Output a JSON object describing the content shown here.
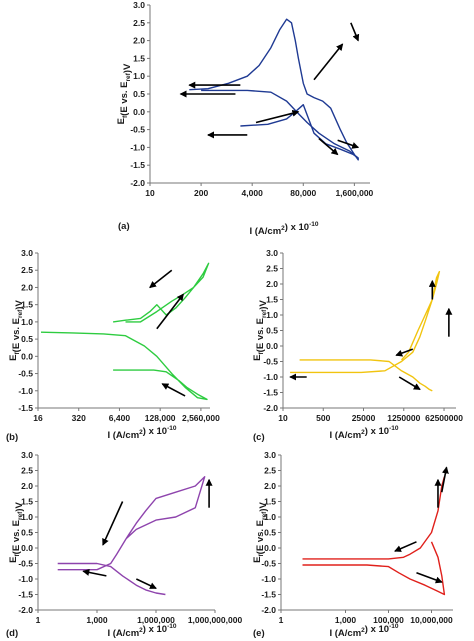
{
  "chart_data": [
    {
      "panel": "(a)",
      "type": "line",
      "color": "#1f3a93",
      "xlabel": "I (A/cm²) x 10⁻¹⁰",
      "ylabel": "Ef(E vs. Eref)V",
      "x_tick_labels": [
        "10",
        "200",
        "4,000",
        "80,000",
        "1,600,000"
      ],
      "x_scale": "log",
      "xlim": [
        10,
        4000000
      ],
      "ylim": [
        -2.0,
        3.0
      ],
      "y_ticks": [
        -2.0,
        -1.5,
        -1.0,
        -0.5,
        0.0,
        0.5,
        1.0,
        1.5,
        2.0,
        2.5,
        3.0
      ],
      "series": [
        {
          "x": [
            200,
            800,
            3000,
            12000,
            30000,
            60000,
            100000,
            200000,
            500000,
            1200000,
            2000000,
            2000000,
            1600000,
            1000000,
            700000,
            400000,
            250000,
            150000,
            100000,
            80000,
            60000,
            50000,
            40000,
            30000,
            20000,
            12000,
            6000,
            3000,
            1000,
            300,
            100
          ],
          "y": [
            0.6,
            0.6,
            0.6,
            0.55,
            0.3,
            -0.05,
            -0.3,
            -0.6,
            -0.9,
            -1.1,
            -1.3,
            -1.35,
            -1.2,
            -0.85,
            -0.5,
            0.1,
            0.3,
            0.4,
            0.5,
            0.8,
            1.5,
            2.0,
            2.5,
            2.6,
            2.3,
            1.8,
            1.3,
            1.0,
            0.8,
            0.65,
            0.62
          ]
        },
        {
          "x": [
            2000,
            10000,
            30000,
            50000,
            80000,
            150000,
            300000,
            700000,
            1500000,
            2000000
          ],
          "y": [
            -0.4,
            -0.35,
            -0.2,
            0.0,
            0.2,
            -0.6,
            -0.9,
            -1.05,
            -1.2,
            -1.3
          ]
        }
      ],
      "arrows": [
        {
          "from": [
            2000,
            0.75
          ],
          "to": [
            100,
            0.75
          ]
        },
        {
          "from": [
            1500,
            0.5
          ],
          "to": [
            60,
            0.5
          ]
        },
        {
          "from": [
            3000,
            -0.65
          ],
          "to": [
            300,
            -0.65
          ]
        },
        {
          "from": [
            5000,
            -0.3
          ],
          "to": [
            60000,
            0.0
          ]
        },
        {
          "from": [
            150000,
            0.9
          ],
          "to": [
            800000,
            1.9
          ]
        },
        {
          "from": [
            1300000,
            2.5
          ],
          "to": [
            2000000,
            2.0
          ]
        },
        {
          "from": [
            200000,
            -0.75
          ],
          "to": [
            600000,
            -1.2
          ]
        },
        {
          "from": [
            600000,
            -0.8
          ],
          "to": [
            2000000,
            -1.0
          ]
        }
      ]
    },
    {
      "panel": "(b)",
      "type": "line",
      "color": "#2ecc40",
      "xlabel": "I (A/cm²) x 10⁻¹⁰",
      "ylabel": "Ef(E vs. Eref)V",
      "x_tick_labels": [
        "16",
        "320",
        "6,400",
        "128,000",
        "2,560,000"
      ],
      "x_scale": "log",
      "xlim": [
        16,
        5000000
      ],
      "ylim": [
        -1.5,
        3.0
      ],
      "y_ticks": [
        -1.5,
        -1.0,
        -0.5,
        0.0,
        0.5,
        1.0,
        1.5,
        2.0,
        2.5,
        3.0
      ],
      "series": [
        {
          "x": [
            20,
            200,
            2000,
            10000,
            40000,
            100000,
            300000,
            800000,
            2000000,
            4000000,
            2000000,
            900000,
            500000,
            200000,
            80000,
            30000,
            10000,
            4000
          ],
          "y": [
            0.7,
            0.68,
            0.65,
            0.6,
            0.3,
            0.0,
            -0.5,
            -0.9,
            -1.2,
            -1.25,
            -1.1,
            -0.9,
            -0.7,
            -0.45,
            -0.4,
            -0.4,
            -0.4,
            -0.4
          ]
        },
        {
          "x": [
            4000,
            10000,
            30000,
            60000,
            100000,
            200000,
            400000,
            800000,
            1500000,
            3000000,
            4500000,
            3000000,
            1500000,
            700000,
            300000,
            100000,
            30000,
            10000
          ],
          "y": [
            1.0,
            1.05,
            1.1,
            1.3,
            1.5,
            1.2,
            1.4,
            1.7,
            2.0,
            2.4,
            2.7,
            2.3,
            2.0,
            1.8,
            1.6,
            1.3,
            1.0,
            1.0
          ]
        }
      ],
      "arrows": [
        {
          "from": [
            300000,
            2.5
          ],
          "to": [
            60000,
            2.0
          ]
        },
        {
          "from": [
            100000,
            0.8
          ],
          "to": [
            700000,
            1.8
          ]
        },
        {
          "from": [
            800000,
            -1.15
          ],
          "to": [
            150000,
            -0.8
          ]
        }
      ]
    },
    {
      "panel": "(c)",
      "type": "line",
      "color": "#f1c40f",
      "xlabel": "I (A/cm²) x 10⁻¹⁰",
      "ylabel": "Ef(E vs. Eref)V",
      "x_tick_labels": [
        "10",
        "500",
        "25000",
        "1250000",
        "62500000"
      ],
      "x_scale": "log",
      "xlim": [
        10,
        200000000
      ],
      "ylim": [
        -2.0,
        3.0
      ],
      "y_ticks": [
        -2.0,
        -1.5,
        -1.0,
        -0.5,
        0.0,
        0.5,
        1.0,
        1.5,
        2.0,
        2.5,
        3.0
      ],
      "series": [
        {
          "x": [
            20,
            200,
            2000,
            20000,
            200000,
            1000000,
            3000000,
            6000000,
            10000000,
            20000000,
            30000000,
            40000000,
            30000000,
            20000000,
            10000000,
            5000000,
            2000000,
            1000000
          ],
          "y": [
            -0.85,
            -0.85,
            -0.85,
            -0.85,
            -0.8,
            -0.5,
            -0.2,
            0.3,
            0.8,
            1.5,
            2.2,
            2.4,
            2.0,
            1.5,
            1.0,
            0.5,
            -0.2,
            -0.45
          ]
        },
        {
          "x": [
            50,
            500,
            5000,
            50000,
            300000,
            1000000,
            3000000,
            6000000,
            10000000,
            15000000,
            20000000
          ],
          "y": [
            -0.45,
            -0.45,
            -0.45,
            -0.45,
            -0.5,
            -0.8,
            -1.0,
            -1.2,
            -1.3,
            -1.4,
            -1.45
          ]
        }
      ],
      "arrows": [
        {
          "from": [
            100000000,
            0.3
          ],
          "to": [
            100000000,
            1.2
          ]
        },
        {
          "from": [
            20000000,
            1.5
          ],
          "to": [
            20000000,
            2.1
          ]
        },
        {
          "from": [
            3000000,
            -0.1
          ],
          "to": [
            600000,
            -0.3
          ]
        },
        {
          "from": [
            800000,
            -1.0
          ],
          "to": [
            6000000,
            -1.4
          ]
        },
        {
          "from": [
            100,
            -1.0
          ],
          "to": [
            20,
            -1.0
          ]
        }
      ]
    },
    {
      "panel": "(d)",
      "type": "line",
      "color": "#8e44ad",
      "xlabel": "I (A/cm²) x 10⁻¹⁰",
      "ylabel": "Ef(E vs. Eref)V",
      "x_tick_labels": [
        "1",
        "1,000",
        "1,000,000",
        "1,000,000,000"
      ],
      "x_scale": "log",
      "xlim": [
        1,
        1000000000
      ],
      "ylim": [
        -2.0,
        3.0
      ],
      "y_ticks": [
        -2.0,
        -1.5,
        -1.0,
        -0.5,
        0.0,
        0.5,
        1.0,
        1.5,
        2.0,
        2.5,
        3.0
      ],
      "series": [
        {
          "x": [
            10,
            100,
            1000,
            5000,
            20000,
            100000,
            300000,
            1000000,
            3000000
          ],
          "y": [
            -0.5,
            -0.5,
            -0.5,
            -0.6,
            -0.9,
            -1.2,
            -1.35,
            -1.45,
            -1.5
          ]
        },
        {
          "x": [
            10,
            100,
            1000,
            5000,
            10000,
            30000,
            100000,
            300000,
            1000000,
            10000000,
            100000000,
            300000000,
            100000000,
            10000000,
            1000000,
            100000,
            30000
          ],
          "y": [
            -0.7,
            -0.7,
            -0.7,
            -0.5,
            -0.2,
            0.3,
            0.8,
            1.2,
            1.6,
            1.8,
            2.0,
            2.3,
            1.3,
            1.0,
            0.9,
            0.6,
            0.3
          ]
        }
      ],
      "arrows": [
        {
          "from": [
            3000,
            -0.9
          ],
          "to": [
            200,
            -0.75
          ]
        },
        {
          "from": [
            100000,
            -1.0
          ],
          "to": [
            1000000,
            -1.3
          ]
        },
        {
          "from": [
            20000,
            1.5
          ],
          "to": [
            2000,
            0.1
          ]
        },
        {
          "from": [
            500000000,
            1.3
          ],
          "to": [
            500000000,
            2.2
          ]
        }
      ]
    },
    {
      "panel": "(e)",
      "type": "line",
      "color": "#e0201b",
      "xlabel": "I (A/cm²) x 10⁻¹⁰",
      "ylabel": "Ef(E vs. Eref)V",
      "x_tick_labels": [
        "1",
        "1,000",
        "100,000",
        "10,000,000"
      ],
      "x_scale": "log",
      "xlim": [
        1,
        100000000
      ],
      "ylim": [
        -2.0,
        3.0
      ],
      "y_ticks": [
        -2.0,
        -1.5,
        -1.0,
        -0.5,
        0.0,
        0.5,
        1.0,
        1.5,
        2.0,
        2.5,
        3.0
      ],
      "series": [
        {
          "x": [
            10,
            100,
            1000,
            10000,
            100000,
            500000,
            1000000,
            3000000,
            10000000,
            20000000,
            30000000,
            40000000
          ],
          "y": [
            -0.35,
            -0.35,
            -0.35,
            -0.35,
            -0.35,
            -0.3,
            -0.2,
            0.0,
            0.5,
            1.2,
            2.0,
            2.3
          ]
        },
        {
          "x": [
            10,
            100,
            1000,
            10000,
            100000,
            300000,
            1000000,
            5000000,
            20000000,
            40000000,
            30000000,
            20000000,
            10000000
          ],
          "y": [
            -0.55,
            -0.55,
            -0.55,
            -0.55,
            -0.6,
            -0.8,
            -1.0,
            -1.2,
            -1.4,
            -1.5,
            -0.9,
            -0.3,
            0.2
          ]
        }
      ],
      "arrows": [
        {
          "from": [
            2000000,
            0.2
          ],
          "to": [
            200000,
            -0.1
          ]
        },
        {
          "from": [
            20000000,
            1.3
          ],
          "to": [
            20000000,
            2.2
          ]
        },
        {
          "from": [
            30000000,
            1.8
          ],
          "to": [
            50000000,
            2.6
          ]
        },
        {
          "from": [
            2000000,
            -0.8
          ],
          "to": [
            30000000,
            -1.1
          ]
        }
      ]
    }
  ]
}
